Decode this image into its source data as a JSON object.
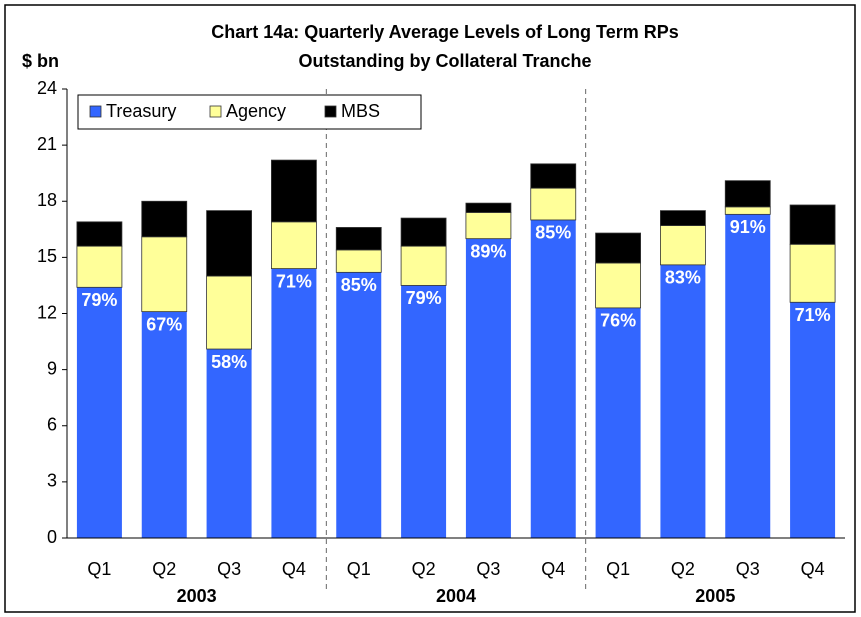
{
  "chart_data": {
    "type": "stacked_bar",
    "title": "Chart 14a:  Quarterly Average Levels of Long Term RPs",
    "subtitle": "Outstanding by Collateral Tranche",
    "y_label": "$ bn",
    "categories": [
      "Q1",
      "Q2",
      "Q3",
      "Q4",
      "Q1",
      "Q2",
      "Q3",
      "Q4",
      "Q1",
      "Q2",
      "Q3",
      "Q4"
    ],
    "group_labels": [
      "2003",
      "2004",
      "2005"
    ],
    "series": [
      {
        "name": "Treasury",
        "color": "#3366ff",
        "values": [
          13.4,
          12.1,
          10.1,
          14.4,
          14.2,
          13.5,
          16.0,
          17.0,
          12.3,
          14.6,
          17.3,
          12.6
        ]
      },
      {
        "name": "Agency",
        "color": "#ffff99",
        "values": [
          2.2,
          4.0,
          3.9,
          2.5,
          1.2,
          2.1,
          1.4,
          1.7,
          2.4,
          2.1,
          0.4,
          3.1
        ]
      },
      {
        "name": "MBS",
        "color": "#000000",
        "values": [
          1.3,
          1.9,
          3.5,
          3.3,
          1.2,
          1.5,
          0.5,
          1.3,
          1.6,
          0.8,
          1.4,
          2.1
        ]
      }
    ],
    "share_labels": [
      "79%",
      "67%",
      "58%",
      "71%",
      "85%",
      "79%",
      "89%",
      "85%",
      "76%",
      "83%",
      "91%",
      "71%"
    ],
    "ylim": [
      0,
      24
    ],
    "yticks": [
      0,
      3,
      6,
      9,
      12,
      15,
      18,
      21,
      24
    ],
    "legend": "top-left"
  }
}
